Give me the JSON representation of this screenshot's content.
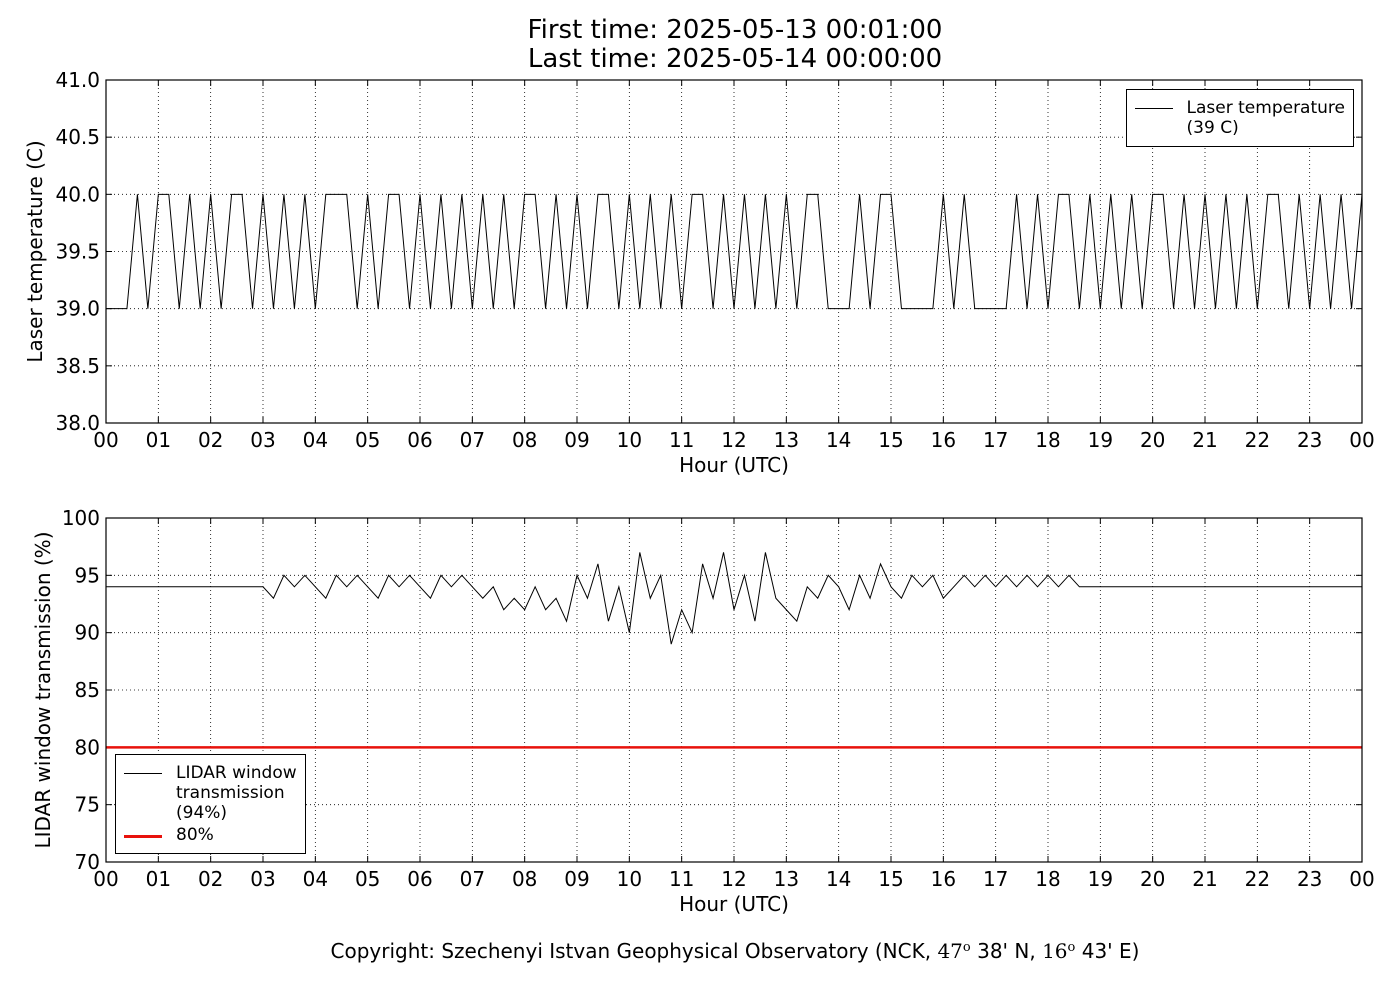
{
  "figure": {
    "title": "First time: 2025-05-13 00:01:00\nLast time: 2025-05-14 00:00:00",
    "footer": [
      "Copyright: Szechenyi Istvan Geophysical Observatory (NCK, ",
      "47",
      "o",
      " 38' N, ",
      "16",
      "o",
      " 43' E)"
    ]
  },
  "chart_data": [
    {
      "type": "line",
      "xlabel": "Hour (UTC)",
      "ylabel": "Laser temperature (C)",
      "grid": true,
      "legend": "upper right",
      "xlim": [
        0,
        24
      ],
      "xticks": [
        {
          "value": 0,
          "label": "00"
        },
        {
          "value": 1,
          "label": "01"
        },
        {
          "value": 2,
          "label": "02"
        },
        {
          "value": 3,
          "label": "03"
        },
        {
          "value": 4,
          "label": "04"
        },
        {
          "value": 5,
          "label": "05"
        },
        {
          "value": 6,
          "label": "06"
        },
        {
          "value": 7,
          "label": "07"
        },
        {
          "value": 8,
          "label": "08"
        },
        {
          "value": 9,
          "label": "09"
        },
        {
          "value": 10,
          "label": "10"
        },
        {
          "value": 11,
          "label": "11"
        },
        {
          "value": 12,
          "label": "12"
        },
        {
          "value": 13,
          "label": "13"
        },
        {
          "value": 14,
          "label": "14"
        },
        {
          "value": 15,
          "label": "15"
        },
        {
          "value": 16,
          "label": "16"
        },
        {
          "value": 17,
          "label": "17"
        },
        {
          "value": 18,
          "label": "18"
        },
        {
          "value": 19,
          "label": "19"
        },
        {
          "value": 20,
          "label": "20"
        },
        {
          "value": 21,
          "label": "21"
        },
        {
          "value": 22,
          "label": "22"
        },
        {
          "value": 23,
          "label": "23"
        },
        {
          "value": 24,
          "label": "00"
        }
      ],
      "ylim": [
        38,
        41
      ],
      "yticks": [
        {
          "value": 38,
          "label": "38.0"
        },
        {
          "value": 38.5,
          "label": "38.5"
        },
        {
          "value": 39,
          "label": "39.0"
        },
        {
          "value": 39.5,
          "label": "39.5"
        },
        {
          "value": 40,
          "label": "40.0"
        },
        {
          "value": 40.5,
          "label": "40.5"
        },
        {
          "value": 41,
          "label": "41.0"
        }
      ],
      "x": [
        0,
        0.2,
        0.4,
        0.6,
        0.8,
        1,
        1.2,
        1.4,
        1.6,
        1.8,
        2,
        2.2,
        2.4,
        2.6,
        2.8,
        3,
        3.2,
        3.4,
        3.6,
        3.8,
        4,
        4.2,
        4.4,
        4.6,
        4.8,
        5,
        5.2,
        5.4,
        5.6,
        5.8,
        6,
        6.2,
        6.4,
        6.6,
        6.8,
        7,
        7.2,
        7.4,
        7.6,
        7.8,
        8,
        8.2,
        8.4,
        8.6,
        8.8,
        9,
        9.2,
        9.4,
        9.6,
        9.8,
        10,
        10.2,
        10.4,
        10.6,
        10.8,
        11,
        11.2,
        11.4,
        11.6,
        11.8,
        12,
        12.2,
        12.4,
        12.6,
        12.8,
        13,
        13.2,
        13.4,
        13.6,
        13.8,
        14,
        14.2,
        14.4,
        14.6,
        14.8,
        15,
        15.2,
        15.4,
        15.6,
        15.8,
        16,
        16.2,
        16.4,
        16.6,
        16.8,
        17,
        17.2,
        17.4,
        17.6,
        17.8,
        18,
        18.2,
        18.4,
        18.6,
        18.8,
        19,
        19.2,
        19.4,
        19.6,
        19.8,
        20,
        20.2,
        20.4,
        20.6,
        20.8,
        21,
        21.2,
        21.4,
        21.6,
        21.8,
        22,
        22.2,
        22.4,
        22.6,
        22.8,
        23,
        23.2,
        23.4,
        23.6,
        23.8,
        24
      ],
      "series": [
        {
          "name": "Laser temperature\n(39 C)",
          "color": "#000000",
          "values": [
            39,
            39,
            39,
            40,
            39,
            40,
            40,
            39,
            40,
            39,
            40,
            39,
            40,
            40,
            39,
            40,
            39,
            40,
            39,
            40,
            39,
            40,
            40,
            40,
            39,
            40,
            39,
            40,
            40,
            39,
            40,
            39,
            40,
            39,
            40,
            39,
            40,
            39,
            40,
            39,
            40,
            40,
            39,
            40,
            39,
            40,
            39,
            40,
            40,
            39,
            40,
            39,
            40,
            39,
            40,
            39,
            40,
            40,
            39,
            40,
            39,
            40,
            39,
            40,
            39,
            40,
            39,
            40,
            40,
            39,
            39,
            39,
            40,
            39,
            40,
            40,
            39,
            39,
            39,
            39,
            40,
            39,
            40,
            39,
            39,
            39,
            39,
            40,
            39,
            40,
            39,
            40,
            40,
            39,
            40,
            39,
            40,
            39,
            40,
            39,
            40,
            40,
            39,
            40,
            39,
            40,
            39,
            40,
            39,
            40,
            39,
            40,
            40,
            39,
            40,
            39,
            40,
            39,
            40,
            39,
            40
          ]
        }
      ]
    },
    {
      "type": "line",
      "xlabel": "Hour (UTC)",
      "ylabel": "LIDAR window transmission (%)",
      "grid": true,
      "legend": "lower left",
      "xlim": [
        0,
        24
      ],
      "xticks": [
        {
          "value": 0,
          "label": "00"
        },
        {
          "value": 1,
          "label": "01"
        },
        {
          "value": 2,
          "label": "02"
        },
        {
          "value": 3,
          "label": "03"
        },
        {
          "value": 4,
          "label": "04"
        },
        {
          "value": 5,
          "label": "05"
        },
        {
          "value": 6,
          "label": "06"
        },
        {
          "value": 7,
          "label": "07"
        },
        {
          "value": 8,
          "label": "08"
        },
        {
          "value": 9,
          "label": "09"
        },
        {
          "value": 10,
          "label": "10"
        },
        {
          "value": 11,
          "label": "11"
        },
        {
          "value": 12,
          "label": "12"
        },
        {
          "value": 13,
          "label": "13"
        },
        {
          "value": 14,
          "label": "14"
        },
        {
          "value": 15,
          "label": "15"
        },
        {
          "value": 16,
          "label": "16"
        },
        {
          "value": 17,
          "label": "17"
        },
        {
          "value": 18,
          "label": "18"
        },
        {
          "value": 19,
          "label": "19"
        },
        {
          "value": 20,
          "label": "20"
        },
        {
          "value": 21,
          "label": "21"
        },
        {
          "value": 22,
          "label": "22"
        },
        {
          "value": 23,
          "label": "23"
        },
        {
          "value": 24,
          "label": "00"
        }
      ],
      "ylim": [
        70,
        100
      ],
      "yticks": [
        70,
        75,
        80,
        85,
        90,
        95,
        100
      ],
      "x": [
        0,
        0.2,
        0.4,
        0.6,
        0.8,
        1,
        1.2,
        1.4,
        1.6,
        1.8,
        2,
        2.2,
        2.4,
        2.6,
        2.8,
        3,
        3.2,
        3.4,
        3.6,
        3.8,
        4,
        4.2,
        4.4,
        4.6,
        4.8,
        5,
        5.2,
        5.4,
        5.6,
        5.8,
        6,
        6.2,
        6.4,
        6.6,
        6.8,
        7,
        7.2,
        7.4,
        7.6,
        7.8,
        8,
        8.2,
        8.4,
        8.6,
        8.8,
        9,
        9.2,
        9.4,
        9.6,
        9.8,
        10,
        10.2,
        10.4,
        10.6,
        10.8,
        11,
        11.2,
        11.4,
        11.6,
        11.8,
        12,
        12.2,
        12.4,
        12.6,
        12.8,
        13,
        13.2,
        13.4,
        13.6,
        13.8,
        14,
        14.2,
        14.4,
        14.6,
        14.8,
        15,
        15.2,
        15.4,
        15.6,
        15.8,
        16,
        16.2,
        16.4,
        16.6,
        16.8,
        17,
        17.2,
        17.4,
        17.6,
        17.8,
        18,
        18.2,
        18.4,
        18.6,
        18.8,
        19,
        19.2,
        19.4,
        19.6,
        19.8,
        20,
        20.2,
        20.4,
        20.6,
        20.8,
        21,
        21.2,
        21.4,
        21.6,
        21.8,
        22,
        22.2,
        22.4,
        22.6,
        22.8,
        23,
        23.2,
        23.4,
        23.6,
        23.8,
        24
      ],
      "series": [
        {
          "name": "LIDAR window\ntransmission\n(94%)",
          "color": "#000000",
          "values": [
            94,
            94,
            94,
            94,
            94,
            94,
            94,
            94,
            94,
            94,
            94,
            94,
            94,
            94,
            94,
            94,
            93,
            95,
            94,
            95,
            94,
            93,
            95,
            94,
            95,
            94,
            93,
            95,
            94,
            95,
            94,
            93,
            95,
            94,
            95,
            94,
            93,
            94,
            92,
            93,
            92,
            94,
            92,
            93,
            91,
            95,
            93,
            96,
            91,
            94,
            90,
            97,
            93,
            95,
            89,
            92,
            90,
            96,
            93,
            97,
            92,
            95,
            91,
            97,
            93,
            92,
            91,
            94,
            93,
            95,
            94,
            92,
            95,
            93,
            96,
            94,
            93,
            95,
            94,
            95,
            93,
            94,
            95,
            94,
            95,
            94,
            95,
            94,
            95,
            94,
            95,
            94,
            95,
            94,
            94,
            94,
            94,
            94,
            94,
            94,
            94,
            94,
            94,
            94,
            94,
            94,
            94,
            94,
            94,
            94,
            94,
            94,
            94,
            94,
            94,
            94,
            94,
            94,
            94,
            94,
            94
          ]
        },
        {
          "name": "80%",
          "color": "#e8120c",
          "x": [
            0,
            24
          ],
          "values": [
            80,
            80
          ]
        }
      ]
    }
  ]
}
